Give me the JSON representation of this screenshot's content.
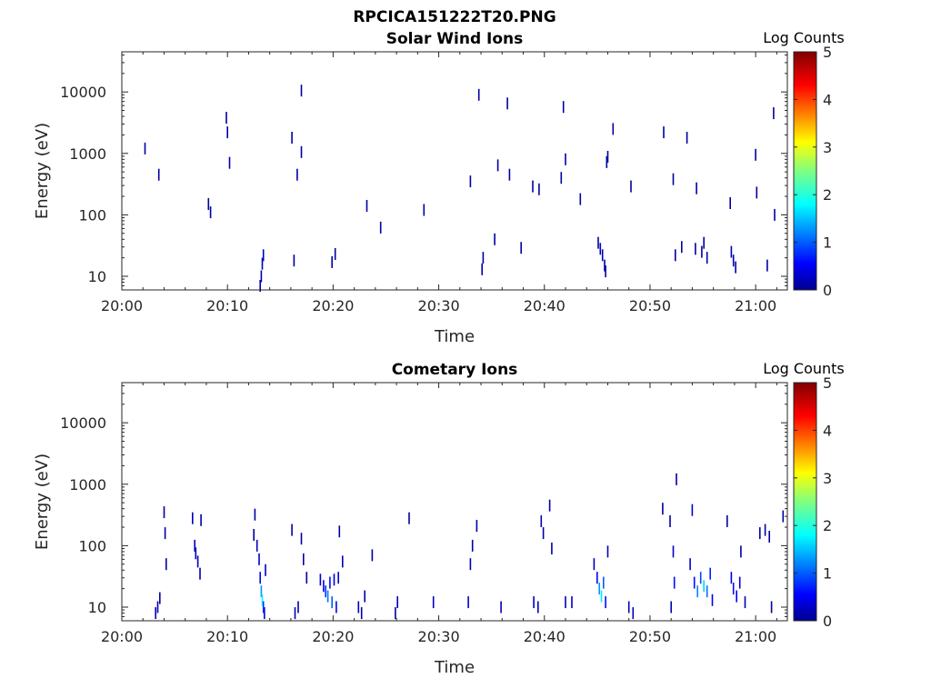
{
  "figure": {
    "title": "RPCICA151222T20.PNG"
  },
  "chart_data": [
    {
      "type": "heatmap",
      "title": "Solar Wind Ions",
      "xlabel": "Time",
      "ylabel": "Energy (eV)",
      "x_ticks": [
        "20:00",
        "20:10",
        "20:20",
        "20:30",
        "20:40",
        "20:50",
        "21:00"
      ],
      "xlim_minutes_after_20_00": [
        0,
        63
      ],
      "y_scale": "log",
      "y_ticks": [
        "10",
        "100",
        "1000",
        "10000"
      ],
      "ylim": [
        6,
        45000
      ],
      "colorbar": {
        "label": "Log Counts",
        "ticks": [
          "0",
          "1",
          "2",
          "3",
          "4",
          "5"
        ],
        "range": [
          0,
          5
        ],
        "colormap": "jet"
      },
      "cells": [
        {
          "t": 2.2,
          "e": 1200,
          "v": 0.1
        },
        {
          "t": 3.5,
          "e": 450,
          "v": 0.1
        },
        {
          "t": 8.2,
          "e": 150,
          "v": 0.1
        },
        {
          "t": 8.4,
          "e": 110,
          "v": 0.1
        },
        {
          "t": 9.9,
          "e": 3800,
          "v": 0.1
        },
        {
          "t": 10.0,
          "e": 2200,
          "v": 0.1
        },
        {
          "t": 10.2,
          "e": 700,
          "v": 0.1
        },
        {
          "t": 13.1,
          "e": 7,
          "v": 0.1
        },
        {
          "t": 13.2,
          "e": 10,
          "v": 0.2
        },
        {
          "t": 13.3,
          "e": 16,
          "v": 0.2
        },
        {
          "t": 13.4,
          "e": 22,
          "v": 0.2
        },
        {
          "t": 16.1,
          "e": 1800,
          "v": 0.1
        },
        {
          "t": 16.3,
          "e": 18,
          "v": 0.1
        },
        {
          "t": 16.6,
          "e": 450,
          "v": 0.1
        },
        {
          "t": 17.0,
          "e": 10500,
          "v": 0.1
        },
        {
          "t": 17.0,
          "e": 1050,
          "v": 0.1
        },
        {
          "t": 19.9,
          "e": 17,
          "v": 0.1
        },
        {
          "t": 20.2,
          "e": 23,
          "v": 0.1
        },
        {
          "t": 23.2,
          "e": 140,
          "v": 0.1
        },
        {
          "t": 24.5,
          "e": 62,
          "v": 0.1
        },
        {
          "t": 28.6,
          "e": 120,
          "v": 0.1
        },
        {
          "t": 33.0,
          "e": 350,
          "v": 0.1
        },
        {
          "t": 33.8,
          "e": 9000,
          "v": 0.1
        },
        {
          "t": 34.1,
          "e": 13,
          "v": 0.1
        },
        {
          "t": 34.2,
          "e": 20,
          "v": 0.1
        },
        {
          "t": 35.3,
          "e": 40,
          "v": 0.1
        },
        {
          "t": 35.6,
          "e": 640,
          "v": 0.1
        },
        {
          "t": 36.5,
          "e": 6500,
          "v": 0.1
        },
        {
          "t": 36.7,
          "e": 450,
          "v": 0.1
        },
        {
          "t": 37.8,
          "e": 29,
          "v": 0.1
        },
        {
          "t": 38.9,
          "e": 290,
          "v": 0.1
        },
        {
          "t": 39.5,
          "e": 260,
          "v": 0.1
        },
        {
          "t": 41.6,
          "e": 400,
          "v": 0.1
        },
        {
          "t": 41.8,
          "e": 5700,
          "v": 0.1
        },
        {
          "t": 42.0,
          "e": 800,
          "v": 0.1
        },
        {
          "t": 43.4,
          "e": 180,
          "v": 0.1
        },
        {
          "t": 45.1,
          "e": 35,
          "v": 0.1
        },
        {
          "t": 45.3,
          "e": 28,
          "v": 0.2
        },
        {
          "t": 45.5,
          "e": 22,
          "v": 0.2
        },
        {
          "t": 45.7,
          "e": 15,
          "v": 0.1
        },
        {
          "t": 45.8,
          "e": 12,
          "v": 0.1
        },
        {
          "t": 45.9,
          "e": 720,
          "v": 0.1
        },
        {
          "t": 46.0,
          "e": 880,
          "v": 0.1
        },
        {
          "t": 46.5,
          "e": 2500,
          "v": 0.1
        },
        {
          "t": 48.2,
          "e": 290,
          "v": 0.1
        },
        {
          "t": 51.3,
          "e": 2200,
          "v": 0.1
        },
        {
          "t": 52.2,
          "e": 380,
          "v": 0.1
        },
        {
          "t": 52.4,
          "e": 22,
          "v": 0.1
        },
        {
          "t": 53.0,
          "e": 30,
          "v": 0.1
        },
        {
          "t": 53.5,
          "e": 1800,
          "v": 0.1
        },
        {
          "t": 54.3,
          "e": 28,
          "v": 0.1
        },
        {
          "t": 54.4,
          "e": 270,
          "v": 0.1
        },
        {
          "t": 54.9,
          "e": 25,
          "v": 0.1
        },
        {
          "t": 55.1,
          "e": 35,
          "v": 0.1
        },
        {
          "t": 55.4,
          "e": 20,
          "v": 0.1
        },
        {
          "t": 57.6,
          "e": 155,
          "v": 0.1
        },
        {
          "t": 57.7,
          "e": 25,
          "v": 0.2
        },
        {
          "t": 57.9,
          "e": 18,
          "v": 0.2
        },
        {
          "t": 58.1,
          "e": 14,
          "v": 0.1
        },
        {
          "t": 60.0,
          "e": 950,
          "v": 0.1
        },
        {
          "t": 60.1,
          "e": 230,
          "v": 0.1
        },
        {
          "t": 61.1,
          "e": 15,
          "v": 0.1
        },
        {
          "t": 61.7,
          "e": 4500,
          "v": 0.1
        },
        {
          "t": 61.8,
          "e": 100,
          "v": 0.1
        }
      ]
    },
    {
      "type": "heatmap",
      "title": "Cometary Ions",
      "xlabel": "Time",
      "ylabel": "Energy (eV)",
      "x_ticks": [
        "20:00",
        "20:10",
        "20:20",
        "20:30",
        "20:40",
        "20:50",
        "21:00"
      ],
      "xlim_minutes_after_20_00": [
        0,
        63
      ],
      "y_scale": "log",
      "y_ticks": [
        "10",
        "100",
        "1000",
        "10000"
      ],
      "ylim": [
        6,
        45000
      ],
      "colorbar": {
        "label": "Log Counts",
        "ticks": [
          "0",
          "1",
          "2",
          "3",
          "4",
          "5"
        ],
        "range": [
          0,
          5
        ],
        "colormap": "jet"
      },
      "cells": [
        {
          "t": 3.2,
          "e": 8,
          "v": 0.2
        },
        {
          "t": 3.4,
          "e": 10,
          "v": 0.2
        },
        {
          "t": 3.6,
          "e": 14,
          "v": 0.1
        },
        {
          "t": 4.0,
          "e": 350,
          "v": 0.1
        },
        {
          "t": 4.1,
          "e": 160,
          "v": 0.1
        },
        {
          "t": 4.2,
          "e": 50,
          "v": 0.1
        },
        {
          "t": 6.7,
          "e": 280,
          "v": 0.1
        },
        {
          "t": 6.9,
          "e": 100,
          "v": 0.2
        },
        {
          "t": 7.0,
          "e": 75,
          "v": 0.2
        },
        {
          "t": 7.2,
          "e": 55,
          "v": 0.2
        },
        {
          "t": 7.4,
          "e": 35,
          "v": 0.1
        },
        {
          "t": 7.5,
          "e": 260,
          "v": 0.1
        },
        {
          "t": 12.5,
          "e": 150,
          "v": 0.1
        },
        {
          "t": 12.6,
          "e": 320,
          "v": 0.1
        },
        {
          "t": 12.8,
          "e": 100,
          "v": 0.3
        },
        {
          "t": 13.0,
          "e": 60,
          "v": 0.3
        },
        {
          "t": 13.1,
          "e": 30,
          "v": 0.5
        },
        {
          "t": 13.2,
          "e": 18,
          "v": 1.3
        },
        {
          "t": 13.3,
          "e": 13,
          "v": 1.8
        },
        {
          "t": 13.4,
          "e": 10,
          "v": 0.8
        },
        {
          "t": 13.5,
          "e": 8,
          "v": 0.4
        },
        {
          "t": 13.6,
          "e": 40,
          "v": 0.2
        },
        {
          "t": 16.1,
          "e": 180,
          "v": 0.1
        },
        {
          "t": 16.4,
          "e": 8,
          "v": 0.2
        },
        {
          "t": 16.7,
          "e": 10,
          "v": 0.2
        },
        {
          "t": 17.0,
          "e": 130,
          "v": 0.1
        },
        {
          "t": 17.2,
          "e": 60,
          "v": 0.1
        },
        {
          "t": 17.5,
          "e": 30,
          "v": 0.1
        },
        {
          "t": 18.8,
          "e": 28,
          "v": 0.3
        },
        {
          "t": 19.1,
          "e": 22,
          "v": 0.5
        },
        {
          "t": 19.3,
          "e": 18,
          "v": 0.8
        },
        {
          "t": 19.5,
          "e": 15,
          "v": 1.1
        },
        {
          "t": 19.7,
          "e": 25,
          "v": 0.6
        },
        {
          "t": 19.9,
          "e": 12,
          "v": 1.0
        },
        {
          "t": 20.1,
          "e": 28,
          "v": 0.4
        },
        {
          "t": 20.3,
          "e": 10,
          "v": 0.5
        },
        {
          "t": 20.5,
          "e": 30,
          "v": 0.3
        },
        {
          "t": 20.6,
          "e": 170,
          "v": 0.1
        },
        {
          "t": 20.9,
          "e": 55,
          "v": 0.2
        },
        {
          "t": 22.4,
          "e": 10,
          "v": 0.2
        },
        {
          "t": 22.7,
          "e": 8,
          "v": 0.2
        },
        {
          "t": 23.0,
          "e": 15,
          "v": 0.1
        },
        {
          "t": 23.7,
          "e": 70,
          "v": 0.1
        },
        {
          "t": 25.9,
          "e": 8,
          "v": 0.1
        },
        {
          "t": 26.1,
          "e": 12,
          "v": 0.2
        },
        {
          "t": 27.2,
          "e": 280,
          "v": 0.1
        },
        {
          "t": 29.5,
          "e": 12,
          "v": 0.2
        },
        {
          "t": 32.8,
          "e": 12,
          "v": 0.3
        },
        {
          "t": 33.0,
          "e": 50,
          "v": 0.2
        },
        {
          "t": 33.2,
          "e": 100,
          "v": 0.1
        },
        {
          "t": 33.6,
          "e": 210,
          "v": 0.1
        },
        {
          "t": 35.9,
          "e": 10,
          "v": 0.2
        },
        {
          "t": 39.0,
          "e": 12,
          "v": 0.2
        },
        {
          "t": 39.4,
          "e": 10,
          "v": 0.2
        },
        {
          "t": 39.7,
          "e": 250,
          "v": 0.2
        },
        {
          "t": 39.9,
          "e": 160,
          "v": 0.1
        },
        {
          "t": 40.5,
          "e": 450,
          "v": 0.1
        },
        {
          "t": 40.7,
          "e": 90,
          "v": 0.1
        },
        {
          "t": 42.0,
          "e": 12,
          "v": 0.2
        },
        {
          "t": 42.6,
          "e": 12,
          "v": 0.2
        },
        {
          "t": 44.7,
          "e": 50,
          "v": 0.2
        },
        {
          "t": 45.0,
          "e": 30,
          "v": 0.5
        },
        {
          "t": 45.2,
          "e": 20,
          "v": 1.3
        },
        {
          "t": 45.4,
          "e": 15,
          "v": 1.7
        },
        {
          "t": 45.6,
          "e": 25,
          "v": 1.0
        },
        {
          "t": 45.8,
          "e": 12,
          "v": 0.6
        },
        {
          "t": 46.0,
          "e": 80,
          "v": 0.2
        },
        {
          "t": 48.0,
          "e": 10,
          "v": 0.2
        },
        {
          "t": 48.4,
          "e": 8,
          "v": 0.2
        },
        {
          "t": 51.2,
          "e": 400,
          "v": 0.1
        },
        {
          "t": 51.9,
          "e": 250,
          "v": 0.1
        },
        {
          "t": 52.0,
          "e": 10,
          "v": 0.2
        },
        {
          "t": 52.2,
          "e": 80,
          "v": 0.3
        },
        {
          "t": 52.3,
          "e": 25,
          "v": 0.6
        },
        {
          "t": 52.5,
          "e": 1200,
          "v": 0.1
        },
        {
          "t": 53.8,
          "e": 50,
          "v": 0.3
        },
        {
          "t": 54.0,
          "e": 380,
          "v": 0.3
        },
        {
          "t": 54.2,
          "e": 25,
          "v": 0.6
        },
        {
          "t": 54.5,
          "e": 18,
          "v": 1.2
        },
        {
          "t": 54.8,
          "e": 30,
          "v": 0.9
        },
        {
          "t": 55.1,
          "e": 22,
          "v": 1.6
        },
        {
          "t": 55.4,
          "e": 18,
          "v": 1.1
        },
        {
          "t": 55.7,
          "e": 35,
          "v": 0.7
        },
        {
          "t": 55.9,
          "e": 13,
          "v": 0.4
        },
        {
          "t": 57.3,
          "e": 250,
          "v": 0.1
        },
        {
          "t": 57.7,
          "e": 30,
          "v": 0.4
        },
        {
          "t": 57.9,
          "e": 20,
          "v": 0.6
        },
        {
          "t": 58.2,
          "e": 15,
          "v": 0.5
        },
        {
          "t": 58.5,
          "e": 25,
          "v": 0.3
        },
        {
          "t": 59.0,
          "e": 12,
          "v": 0.2
        },
        {
          "t": 58.6,
          "e": 80,
          "v": 0.1
        },
        {
          "t": 60.4,
          "e": 160,
          "v": 0.1
        },
        {
          "t": 60.9,
          "e": 180,
          "v": 0.1
        },
        {
          "t": 61.3,
          "e": 140,
          "v": 0.1
        },
        {
          "t": 61.5,
          "e": 10,
          "v": 0.1
        },
        {
          "t": 62.6,
          "e": 300,
          "v": 0.1
        }
      ]
    }
  ]
}
